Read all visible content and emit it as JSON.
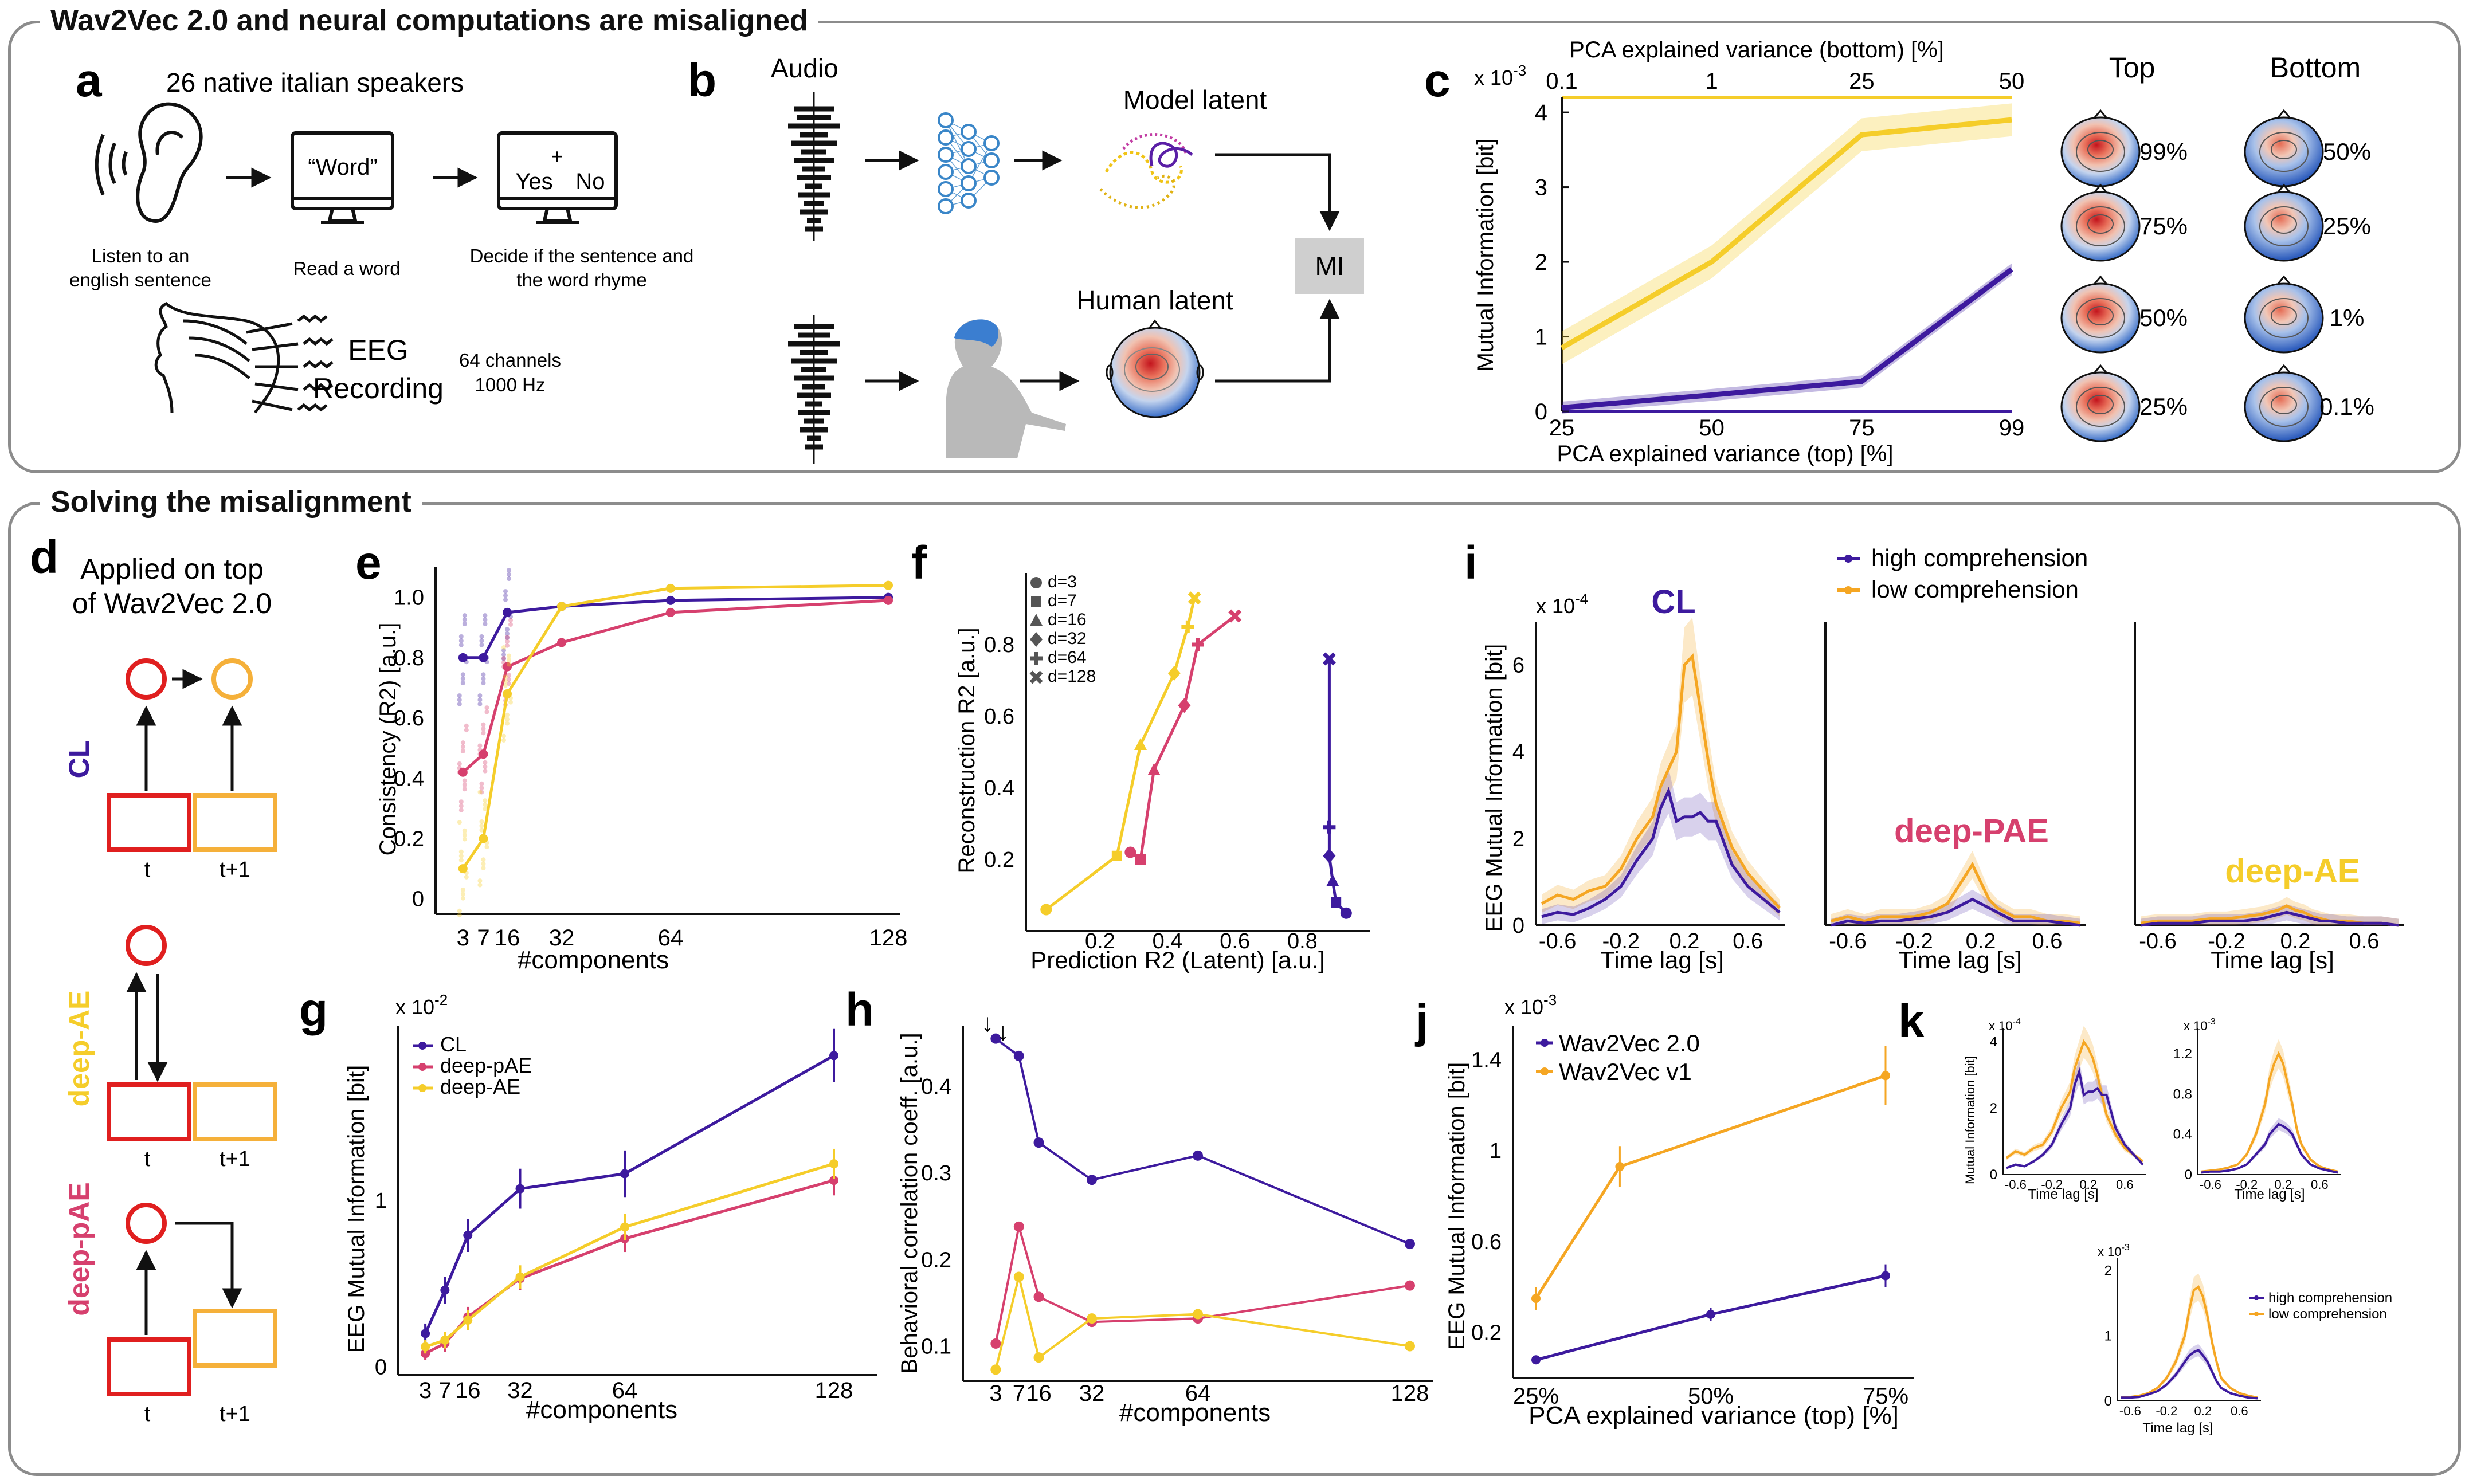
{
  "section1_title": "Wav2Vec 2.0 and neural computations are misaligned",
  "section2_title": "Solving the misalignment",
  "panel_a": {
    "letter": "a",
    "title": "26 native italian speakers",
    "step1": [
      "Listen to an",
      "english sentence"
    ],
    "screen1": "“Word”",
    "step2": "Read a word",
    "screen3_plus": "+",
    "screen3_yes": "Yes",
    "screen3_no": "No",
    "step3": [
      "Decide if the sentence and",
      "the word rhyme"
    ],
    "eeg": [
      "EEG",
      "Recording"
    ],
    "channels": [
      "64 channels",
      "1000 Hz"
    ]
  },
  "panel_b": {
    "letter": "b",
    "audio": "Audio",
    "model_latent": "Model latent",
    "human_latent": "Human latent",
    "mi": "MI"
  },
  "panel_c": {
    "letter": "c",
    "top_axis_title": "PCA explained variance (bottom) [%]",
    "top_ticks": [
      "0.1",
      "1",
      "25",
      "50"
    ],
    "bottom_ticks": [
      "25",
      "50",
      "75",
      "99"
    ],
    "xlabel": "PCA explained variance (top) [%]",
    "ylabel": "Mutual Information [bit]",
    "exponent": "x 10",
    "exponent_power": "-3",
    "yticks": [
      "0",
      "1",
      "2",
      "3",
      "4"
    ],
    "top_label": "Top",
    "bottom_label": "Bottom",
    "top_pcts": [
      "99%",
      "75%",
      "50%",
      "25%"
    ],
    "bottom_pcts": [
      "50%",
      "25%",
      "1%",
      "0.1%"
    ]
  },
  "panel_d": {
    "letter": "d",
    "title": [
      "Applied on top",
      "of Wav2Vec 2.0"
    ],
    "cl": "CL",
    "deep_ae": "deep-AE",
    "deep_pae": "deep-pAE",
    "t": "t",
    "t1": "t+1"
  },
  "panel_e": {
    "letter": "e",
    "ylabel": "Consistency (R2) [a.u.]",
    "xlabel": "#components",
    "yticks": [
      "0",
      "0.2",
      "0.4",
      "0.6",
      "0.8",
      "1.0"
    ],
    "xticks": [
      "3",
      "7",
      "16",
      "32",
      "64",
      "128"
    ]
  },
  "panel_f": {
    "letter": "f",
    "ylabel": "Reconstruction R2 [a.u.]",
    "xlabel": "Prediction R2 (Latent) [a.u.]",
    "yticks": [
      "0.2",
      "0.4",
      "0.6",
      "0.8"
    ],
    "xticks": [
      "0.2",
      "0.4",
      "0.6",
      "0.8"
    ],
    "legend": [
      "d=3",
      "d=7",
      "d=16",
      "d=32",
      "d=64",
      "d=128"
    ]
  },
  "panel_g": {
    "letter": "g",
    "ylabel": "EEG Mutual Information [bit]",
    "xlabel": "#components",
    "exponent": "x 10",
    "exponent_power": "-2",
    "yticks": [
      "0",
      "1"
    ],
    "xticks": [
      "3",
      "7",
      "16",
      "32",
      "64",
      "128"
    ],
    "legend": [
      "CL",
      "deep-pAE",
      "deep-AE"
    ]
  },
  "panel_h": {
    "letter": "h",
    "ylabel": "Behavioral correlation coeff. [a.u.]",
    "xlabel": "#components",
    "yticks": [
      "0.1",
      "0.2",
      "0.3",
      "0.4"
    ],
    "xticks": [
      "3",
      "7",
      "16",
      "32",
      "64",
      "128"
    ],
    "arrow1": "↓",
    "arrow2": "↓"
  },
  "panel_i": {
    "letter": "i",
    "ylabel": "EEG Mutual Information [bit]",
    "exponent": "x 10",
    "exponent_power": "-4",
    "yticks": [
      "0",
      "2",
      "4",
      "6"
    ],
    "xlabel": "Time lag [s]",
    "xticks": [
      "-0.6",
      "-0.2",
      "0.2",
      "0.6"
    ],
    "cl": "CL",
    "deep_pae": "deep-PAE",
    "deep_ae": "deep-AE",
    "legend": [
      "high comprehension",
      "low comprehension"
    ]
  },
  "panel_j": {
    "letter": "j",
    "ylabel": "EEG Mutual Information [bit]",
    "xlabel": "PCA explained variance (top) [%]",
    "exponent": "x 10",
    "exponent_power": "-3",
    "yticks": [
      "0.2",
      "0.6",
      "1",
      "1.4"
    ],
    "xticks": [
      "25%",
      "50%",
      "75%"
    ],
    "legend": [
      "Wav2Vec 2.0",
      "Wav2Vec v1"
    ]
  },
  "panel_k": {
    "letter": "k",
    "ylabel": "Mutual Information [bit]",
    "xlabel": "Time lag [s]",
    "xticks": [
      "-0.6",
      "-0.2",
      "0.2",
      "0.6"
    ],
    "exp1": "x 10",
    "exp1_power": "-4",
    "yticks1": [
      "0",
      "2",
      "4"
    ],
    "exp2": "x 10",
    "exp2_power": "-3",
    "yticks2": [
      "0",
      "0.4",
      "0.8",
      "1.2"
    ],
    "exp3": "x 10",
    "exp3_power": "-3",
    "yticks3": [
      "0",
      "1",
      "2"
    ],
    "legend": [
      "high comprehension",
      "low comprehension"
    ]
  },
  "colors": {
    "purple": "#3d1a9e",
    "yellow": "#f5cd2a",
    "pink": "#d6406e",
    "orange": "#f5a623",
    "red": "#e01f1f",
    "box_orange": "#f5b03a",
    "gray": "#cfcfcf"
  },
  "chart_data": [
    {
      "panel": "c",
      "type": "line",
      "xlabel": "PCA explained variance (top) [%]",
      "ylabel": "Mutual Information [bit]",
      "categories": [
        "25",
        "50",
        "75",
        "99"
      ],
      "series": [
        {
          "values": [
            0.85,
            2.0,
            3.7,
            3.9
          ]
        },
        {
          "values": [
            0.05,
            0.22,
            0.4,
            1.9
          ]
        }
      ],
      "ylim": [
        0,
        4.2
      ]
    },
    {
      "panel": "e",
      "type": "line",
      "xlabel": "#components",
      "ylabel": "Consistency (R2) [a.u.]",
      "x": [
        3,
        7,
        16,
        32,
        64,
        128
      ],
      "series": [
        {
          "name": "CL",
          "values": [
            0.8,
            0.8,
            0.95,
            0.97,
            0.99,
            1.0
          ]
        },
        {
          "name": "deep-pAE",
          "values": [
            0.42,
            0.48,
            0.77,
            0.85,
            0.95,
            0.99
          ]
        },
        {
          "name": "deep-AE",
          "values": [
            0.1,
            0.2,
            0.68,
            0.97,
            1.03,
            1.04
          ]
        }
      ],
      "ylim": [
        -0.05,
        1.1
      ]
    },
    {
      "panel": "f",
      "type": "scatter",
      "xlabel": "Prediction R2 (Latent) [a.u.]",
      "ylabel": "Reconstruction R2 [a.u.]",
      "series": [
        {
          "name": "deep-AE",
          "x": [
            0.04,
            0.25,
            0.32,
            0.42,
            0.46,
            0.48
          ],
          "y": [
            0.06,
            0.21,
            0.52,
            0.72,
            0.85,
            0.93
          ]
        },
        {
          "name": "deep-pAE",
          "x": [
            0.29,
            0.32,
            0.36,
            0.45,
            0.49,
            0.6
          ],
          "y": [
            0.22,
            0.2,
            0.45,
            0.63,
            0.8,
            0.88
          ]
        },
        {
          "name": "CL",
          "x": [
            0.88,
            0.88,
            0.88,
            0.89,
            0.9,
            0.93
          ],
          "y": [
            0.76,
            0.29,
            0.21,
            0.14,
            0.08,
            0.05
          ]
        }
      ],
      "xlim": [
        -0.02,
        1.0
      ],
      "ylim": [
        0.0,
        1.0
      ]
    },
    {
      "panel": "g",
      "type": "line",
      "xlabel": "#components",
      "ylabel": "EEG Mutual Information [bit]",
      "x": [
        3,
        7,
        16,
        32,
        64,
        128
      ],
      "series": [
        {
          "name": "CL",
          "values": [
            0.2,
            0.46,
            0.79,
            1.07,
            1.16,
            1.87
          ]
        },
        {
          "name": "deep-pAE",
          "values": [
            0.08,
            0.14,
            0.3,
            0.53,
            0.77,
            1.12
          ]
        },
        {
          "name": "deep-AE",
          "values": [
            0.12,
            0.16,
            0.28,
            0.54,
            0.84,
            1.22
          ]
        }
      ],
      "ylim": [
        -0.05,
        2.05
      ]
    },
    {
      "panel": "h",
      "type": "line",
      "xlabel": "#components",
      "ylabel": "Behavioral correlation coeff. [a.u.]",
      "x": [
        3,
        7,
        16,
        32,
        64,
        128
      ],
      "series": [
        {
          "name": "CL",
          "values": [
            0.455,
            0.435,
            0.335,
            0.292,
            0.32,
            0.218
          ]
        },
        {
          "name": "deep-pAE",
          "values": [
            0.103,
            0.238,
            0.157,
            0.128,
            0.132,
            0.17
          ]
        },
        {
          "name": "deep-AE",
          "values": [
            0.073,
            0.18,
            0.087,
            0.132,
            0.137,
            0.1
          ]
        }
      ],
      "ylim": [
        0.06,
        0.47
      ]
    },
    {
      "panel": "i",
      "type": "line",
      "xlabel": "Time lag [s]",
      "ylabel": "EEG Mutual Information [bit]",
      "x": [
        -0.7,
        -0.6,
        -0.5,
        -0.4,
        -0.3,
        -0.2,
        -0.1,
        0.0,
        0.05,
        0.1,
        0.15,
        0.2,
        0.25,
        0.3,
        0.35,
        0.4,
        0.5,
        0.6,
        0.7,
        0.8
      ],
      "series": [
        {
          "name": "high comprehension",
          "CL": [
            0.2,
            0.3,
            0.25,
            0.4,
            0.6,
            0.9,
            1.5,
            2.0,
            2.7,
            3.1,
            2.4,
            2.5,
            2.5,
            2.6,
            2.4,
            2.4,
            1.4,
            0.9,
            0.6,
            0.3
          ],
          "deep-PAE": [
            0.0,
            0.1,
            0.05,
            0.1,
            0.1,
            0.15,
            0.2,
            0.3,
            0.4,
            0.5,
            0.6,
            0.5,
            0.4,
            0.3,
            0.2,
            0.1,
            0.1,
            0.1,
            0.05,
            0.0
          ],
          "deep-AE": [
            0.0,
            0.05,
            0.05,
            0.05,
            0.1,
            0.1,
            0.1,
            0.15,
            0.2,
            0.25,
            0.3,
            0.25,
            0.2,
            0.15,
            0.1,
            0.1,
            0.05,
            0.05,
            0.05,
            0.0
          ]
        },
        {
          "name": "low comprehension",
          "CL": [
            0.5,
            0.7,
            0.6,
            0.8,
            0.9,
            1.3,
            2.0,
            2.5,
            3.2,
            3.6,
            4.0,
            6.0,
            6.2,
            5.0,
            3.8,
            2.8,
            1.8,
            1.2,
            0.8,
            0.4
          ],
          "deep-PAE": [
            0.1,
            0.2,
            0.1,
            0.2,
            0.2,
            0.2,
            0.3,
            0.5,
            0.8,
            1.1,
            1.4,
            1.0,
            0.6,
            0.4,
            0.3,
            0.2,
            0.2,
            0.1,
            0.1,
            0.05
          ],
          "deep-AE": [
            0.05,
            0.1,
            0.1,
            0.1,
            0.15,
            0.15,
            0.2,
            0.25,
            0.3,
            0.35,
            0.45,
            0.35,
            0.3,
            0.2,
            0.15,
            0.1,
            0.1,
            0.05,
            0.05,
            0.0
          ]
        }
      ],
      "ylim": [
        0,
        7
      ]
    },
    {
      "panel": "j",
      "type": "line",
      "xlabel": "PCA explained variance (top) [%]",
      "ylabel": "EEG Mutual Information [bit]",
      "series": [
        {
          "name": "Wav2Vec 2.0",
          "x": [
            25,
            50,
            75
          ],
          "values": [
            0.08,
            0.28,
            0.45
          ]
        },
        {
          "name": "Wav2Vec v1",
          "x": [
            25,
            37,
            75
          ],
          "values": [
            0.35,
            0.93,
            1.33
          ]
        }
      ],
      "ylim": [
        0,
        1.55
      ]
    },
    {
      "panel": "k",
      "type": "line",
      "xlabel": "Time lag [s]",
      "ylabel": "Mutual Information [bit]",
      "x": [
        -0.7,
        -0.6,
        -0.5,
        -0.4,
        -0.3,
        -0.2,
        -0.1,
        0.0,
        0.05,
        0.1,
        0.15,
        0.2,
        0.25,
        0.3,
        0.35,
        0.4,
        0.5,
        0.6,
        0.7,
        0.8
      ],
      "series": [
        {
          "name": "high comprehension",
          "plot1": [
            0.2,
            0.3,
            0.25,
            0.4,
            0.6,
            0.9,
            1.5,
            2.0,
            2.7,
            3.1,
            2.4,
            2.5,
            2.5,
            2.6,
            2.4,
            2.4,
            1.4,
            0.9,
            0.6,
            0.3
          ],
          "plot2": [
            0.02,
            0.03,
            0.03,
            0.04,
            0.06,
            0.1,
            0.2,
            0.3,
            0.4,
            0.45,
            0.5,
            0.48,
            0.45,
            0.4,
            0.3,
            0.2,
            0.1,
            0.06,
            0.04,
            0.02
          ],
          "plot3": [
            0.05,
            0.05,
            0.06,
            0.1,
            0.15,
            0.25,
            0.4,
            0.6,
            0.7,
            0.75,
            0.78,
            0.7,
            0.6,
            0.45,
            0.3,
            0.2,
            0.12,
            0.08,
            0.05,
            0.04
          ]
        },
        {
          "name": "low comprehension",
          "plot1": [
            0.5,
            0.7,
            0.6,
            0.8,
            0.9,
            1.3,
            2.0,
            2.5,
            3.2,
            3.6,
            4.0,
            3.8,
            3.5,
            3.0,
            2.4,
            1.8,
            1.2,
            0.8,
            0.6,
            0.4
          ],
          "plot2": [
            0.03,
            0.04,
            0.05,
            0.07,
            0.1,
            0.2,
            0.4,
            0.7,
            0.95,
            1.1,
            1.2,
            1.1,
            0.9,
            0.7,
            0.45,
            0.3,
            0.15,
            0.08,
            0.05,
            0.03
          ],
          "plot3": [
            0.05,
            0.06,
            0.08,
            0.12,
            0.2,
            0.35,
            0.6,
            1.0,
            1.4,
            1.7,
            1.75,
            1.6,
            1.3,
            0.9,
            0.6,
            0.35,
            0.2,
            0.12,
            0.08,
            0.05
          ]
        }
      ]
    }
  ]
}
